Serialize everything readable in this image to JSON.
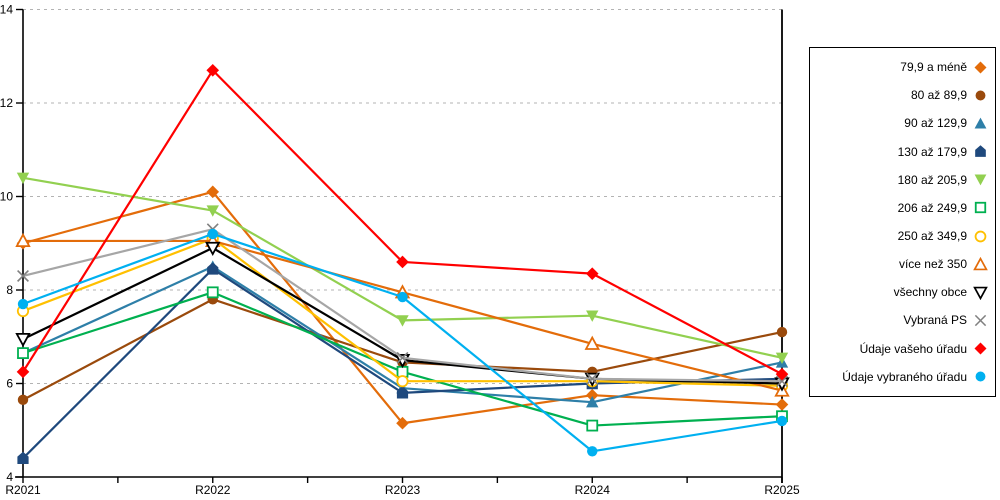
{
  "chart_data": {
    "type": "line",
    "title": "",
    "xlabel": "",
    "ylabel": "",
    "categories": [
      "R2021",
      "R2022",
      "R2023",
      "R2024",
      "R2025"
    ],
    "ylim": [
      4,
      14
    ],
    "ytick_labels": [
      "4",
      "6",
      "8",
      "10",
      "12",
      "14"
    ],
    "grid": "horizontal-dotted",
    "legend_position": "right",
    "series": [
      {
        "name": "79,9 a méně",
        "color": "#E36C0A",
        "marker": "diamond",
        "values": [
          9.0,
          10.1,
          5.15,
          5.75,
          5.55
        ]
      },
      {
        "name": "80 až 89,9",
        "color": "#9A4A0C",
        "marker": "circle",
        "values": [
          5.65,
          7.8,
          6.45,
          6.25,
          7.1
        ]
      },
      {
        "name": "90 až 129,9",
        "color": "#2E7FA8",
        "marker": "triangle-up",
        "values": [
          6.65,
          8.5,
          5.9,
          5.6,
          6.45
        ]
      },
      {
        "name": "130 až 179,9",
        "color": "#1F497D",
        "marker": "pentagon",
        "values": [
          4.4,
          8.45,
          5.8,
          6.0,
          6.1
        ]
      },
      {
        "name": "180 až 205,9",
        "color": "#92D050",
        "marker": "triangle-down",
        "values": [
          10.4,
          9.7,
          7.35,
          7.45,
          6.55
        ]
      },
      {
        "name": "206 až 249,9",
        "color": "#00B050",
        "marker": "square-open",
        "values": [
          6.65,
          7.95,
          6.25,
          5.1,
          5.3
        ]
      },
      {
        "name": "250 až 349,9",
        "color": "#FFC000",
        "marker": "circle-open",
        "values": [
          7.55,
          9.1,
          6.05,
          6.05,
          5.95
        ]
      },
      {
        "name": "více než 350",
        "color": "#E36C0A",
        "marker": "triangle-up-open",
        "values": [
          9.05,
          9.05,
          7.95,
          6.85,
          5.85
        ]
      },
      {
        "name": "všechny obce",
        "color": "#000000",
        "marker": "triangle-down-open",
        "values": [
          6.95,
          8.9,
          6.5,
          6.1,
          6.0
        ]
      },
      {
        "name": "Vybraná PS",
        "color": "#A6A6A6",
        "marker": "x",
        "marker_color": "#808080",
        "values": [
          8.3,
          9.3,
          6.55,
          6.1,
          6.05
        ]
      },
      {
        "name": "Údaje vašeho úřadu",
        "color": "#FF0000",
        "marker": "diamond",
        "values": [
          6.25,
          12.7,
          8.6,
          8.35,
          6.2
        ]
      },
      {
        "name": "Údaje vybraného úřadu",
        "color": "#00B0F0",
        "marker": "circle",
        "values": [
          7.7,
          9.2,
          7.85,
          4.55,
          5.2
        ]
      }
    ]
  },
  "colors": {
    "background": "#FFFFFF",
    "axis": "#000000",
    "gridline": "#B3B3B3",
    "tick_label": "#000000"
  }
}
